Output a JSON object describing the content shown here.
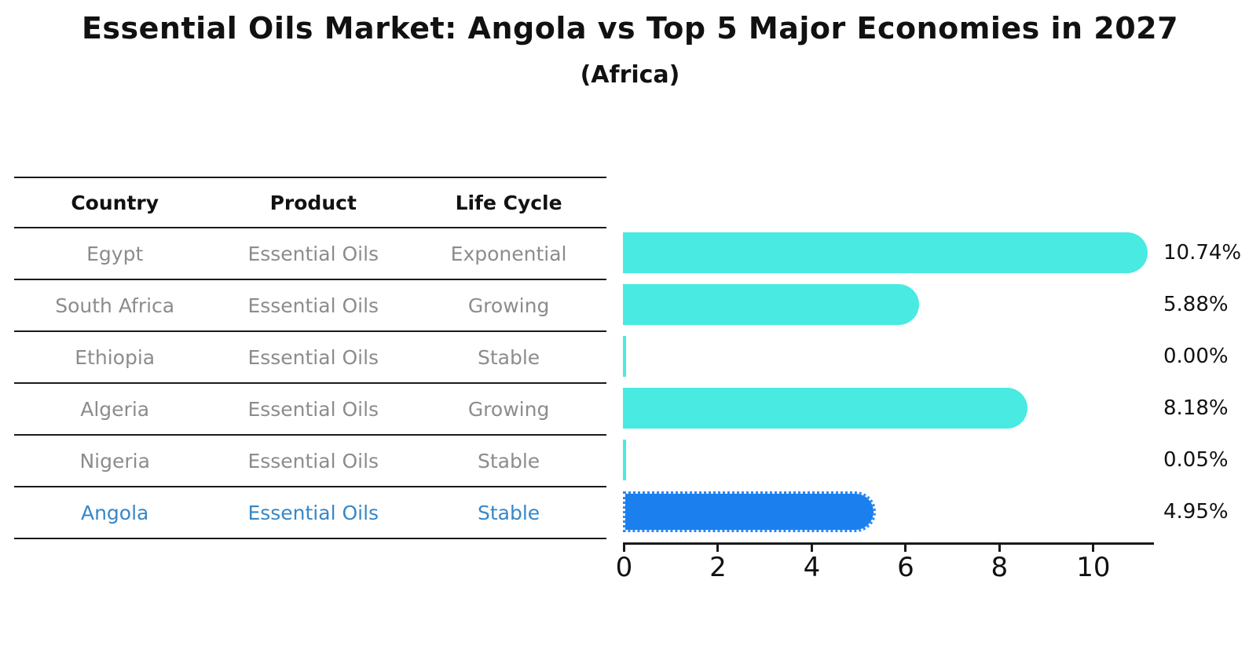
{
  "chart_data": {
    "type": "bar",
    "orientation": "horizontal",
    "title": "Essential Oils Market: Angola vs Top 5 Major Economies in 2027",
    "subtitle": "(Africa)",
    "categories": [
      "Egypt",
      "South Africa",
      "Ethiopia",
      "Algeria",
      "Nigeria",
      "Angola"
    ],
    "values": [
      10.74,
      5.88,
      0.0,
      8.18,
      0.05,
      4.95
    ],
    "value_labels": [
      "10.74%",
      "5.88%",
      "0.00%",
      "8.18%",
      "0.05%",
      "4.95%"
    ],
    "highlight_category": "Angola",
    "x_ticks": [
      "0",
      "2",
      "4",
      "6",
      "8",
      "10"
    ],
    "xlim": [
      0,
      11.3
    ],
    "grid": false,
    "legend": false,
    "bar_color": "#48eae1",
    "highlight_bar_color": "#1b80ee"
  },
  "table": {
    "headers": [
      "Country",
      "Product",
      "Life Cycle"
    ],
    "rows": [
      {
        "country": "Egypt",
        "product": "Essential Oils",
        "life_cycle": "Exponential"
      },
      {
        "country": "South Africa",
        "product": "Essential Oils",
        "life_cycle": "Growing"
      },
      {
        "country": "Ethiopia",
        "product": "Essential Oils",
        "life_cycle": "Stable"
      },
      {
        "country": "Algeria",
        "product": "Essential Oils",
        "life_cycle": "Growing"
      },
      {
        "country": "Nigeria",
        "product": "Essential Oils",
        "life_cycle": "Stable"
      },
      {
        "country": "Angola",
        "product": "Essential Oils",
        "life_cycle": "Stable"
      }
    ],
    "highlight_row": "Angola"
  },
  "colors": {
    "title_text": "#111111",
    "table_text": "#8c8c8c",
    "highlight_text": "#3787c7",
    "axis_line": "#1a1a1a",
    "bar_cyan": "#48eae1",
    "bar_blue": "#1b80ee"
  }
}
